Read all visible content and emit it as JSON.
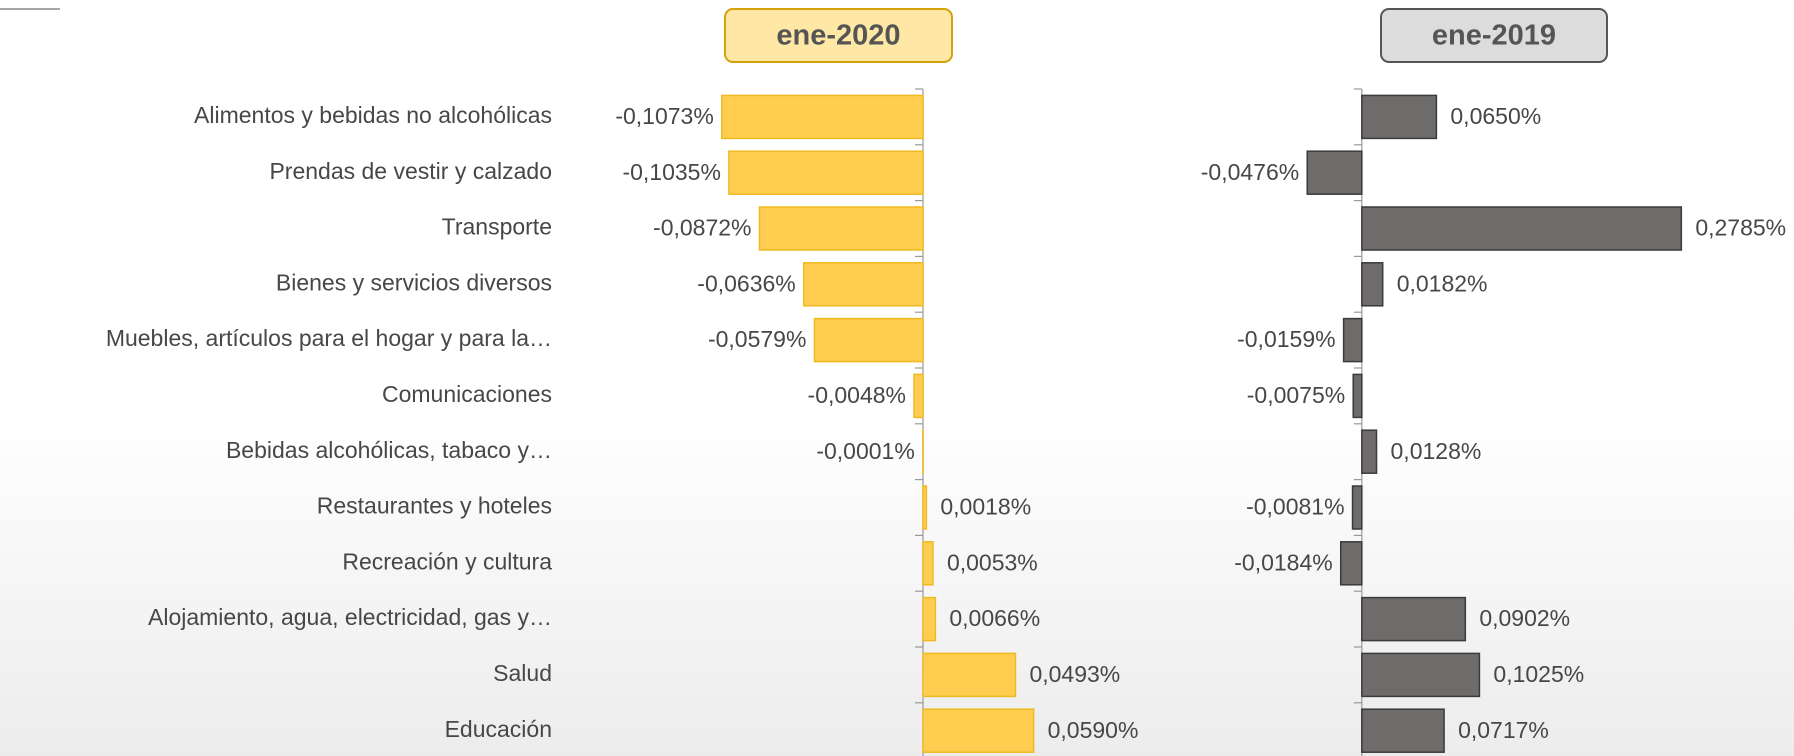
{
  "chart_data": [
    {
      "type": "bar",
      "orientation": "horizontal",
      "title": "ene-2020",
      "categories": [
        "Alimentos y bebidas no alcohólicas",
        "Prendas de vestir y calzado",
        "Transporte",
        "Bienes y servicios diversos",
        "Muebles, artículos para el hogar y para la…",
        "Comunicaciones",
        "Bebidas alcohólicas, tabaco y…",
        "Restaurantes y hoteles",
        "Recreación y cultura",
        "Alojamiento, agua, electricidad, gas y…",
        "Salud",
        "Educación"
      ],
      "values": [
        -0.1073,
        -0.1035,
        -0.0872,
        -0.0636,
        -0.0579,
        -0.0048,
        -0.0001,
        0.0018,
        0.0053,
        0.0066,
        0.0493,
        0.059
      ],
      "value_labels": [
        "-0,1073%",
        "-0,1035%",
        "-0,0872%",
        "-0,0636%",
        "-0,0579%",
        "-0,0048%",
        "-0,0001%",
        "0,0018%",
        "0,0053%",
        "0,0066%",
        "0,0493%",
        "0,0590%"
      ],
      "color": "#ffcd4f",
      "edge_color": "#f0b922",
      "header_fill": "#ffe8a6",
      "header_edge": "#d4a20a",
      "xlim": [
        -0.12,
        0.12
      ]
    },
    {
      "type": "bar",
      "orientation": "horizontal",
      "title": "ene-2019",
      "values": [
        0.065,
        -0.0476,
        0.2785,
        0.0182,
        -0.0159,
        -0.0075,
        0.0128,
        -0.0081,
        -0.0184,
        0.0902,
        0.1025,
        0.0717
      ],
      "value_labels": [
        "0,0650%",
        "-0,0476%",
        "0,2785%",
        "0,0182%",
        "-0,0159%",
        "-0,0075%",
        "0,0128%",
        "-0,0081%",
        "-0,0184%",
        "0,0902%",
        "0,1025%",
        "0,0717%"
      ],
      "color": "#6e6b6b",
      "edge_color": "#3c3a3a",
      "header_fill": "#dcdcdc",
      "header_edge": "#555555",
      "xlim": [
        -0.06,
        0.3
      ]
    }
  ]
}
